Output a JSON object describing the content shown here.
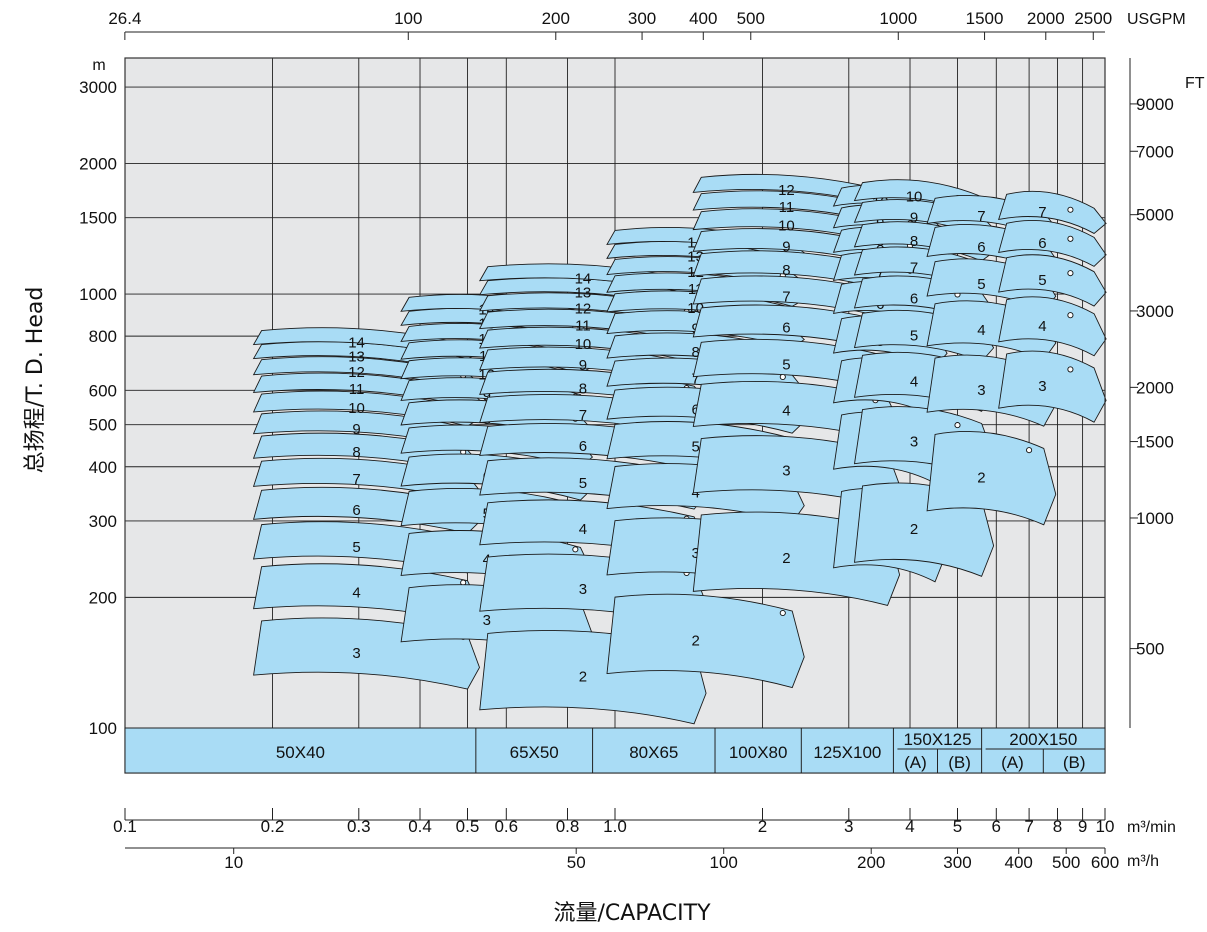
{
  "chart_data": {
    "type": "area",
    "title": "",
    "xlabel": "流量/CAPACITY",
    "ylabel": "总扬程/T. D. Head",
    "x_scale": "log",
    "y_scale": "log",
    "xlim_m3min": [
      0.1,
      10
    ],
    "ylim_m": [
      100,
      3500
    ],
    "y_unit_left": "m",
    "y_unit_right": "FT",
    "grid": true,
    "x_ticks_m3min": [
      {
        "v": 0.1,
        "label": "0.1"
      },
      {
        "v": 0.2,
        "label": "0.2"
      },
      {
        "v": 0.3,
        "label": "0.3"
      },
      {
        "v": 0.4,
        "label": "0.4"
      },
      {
        "v": 0.5,
        "label": "0.5"
      },
      {
        "v": 0.6,
        "label": "0.6"
      },
      {
        "v": 0.8,
        "label": "0.8"
      },
      {
        "v": 1.0,
        "label": "1.0"
      },
      {
        "v": 2,
        "label": "2"
      },
      {
        "v": 3,
        "label": "3"
      },
      {
        "v": 4,
        "label": "4"
      },
      {
        "v": 5,
        "label": "5"
      },
      {
        "v": 6,
        "label": "6"
      },
      {
        "v": 7,
        "label": "7"
      },
      {
        "v": 8,
        "label": "8"
      },
      {
        "v": 9,
        "label": "9"
      },
      {
        "v": 10,
        "label": "10"
      }
    ],
    "x_unit_m3min": "m³/min",
    "x_ticks_m3h": [
      {
        "v": 10,
        "label": "10"
      },
      {
        "v": 50,
        "label": "50"
      },
      {
        "v": 100,
        "label": "100"
      },
      {
        "v": 200,
        "label": "200"
      },
      {
        "v": 300,
        "label": "300"
      },
      {
        "v": 400,
        "label": "400"
      },
      {
        "v": 500,
        "label": "500"
      },
      {
        "v": 600,
        "label": "600"
      }
    ],
    "x_unit_m3h": "m³/h",
    "x_ticks_usgpm": [
      {
        "v": 26.4,
        "label": "26.4"
      },
      {
        "v": 100,
        "label": "100"
      },
      {
        "v": 200,
        "label": "200"
      },
      {
        "v": 300,
        "label": "300"
      },
      {
        "v": 400,
        "label": "400"
      },
      {
        "v": 500,
        "label": "500"
      },
      {
        "v": 1000,
        "label": "1000"
      },
      {
        "v": 1500,
        "label": "1500"
      },
      {
        "v": 2000,
        "label": "2000"
      },
      {
        "v": 2500,
        "label": "2500"
      }
    ],
    "x_unit_usgpm": "USGPM",
    "y_ticks_m": [
      {
        "v": 100,
        "label": "100"
      },
      {
        "v": 200,
        "label": "200"
      },
      {
        "v": 300,
        "label": "300"
      },
      {
        "v": 400,
        "label": "400"
      },
      {
        "v": 500,
        "label": "500"
      },
      {
        "v": 600,
        "label": "600"
      },
      {
        "v": 800,
        "label": "800"
      },
      {
        "v": 1000,
        "label": "1000"
      },
      {
        "v": 1500,
        "label": "1500"
      },
      {
        "v": 2000,
        "label": "2000"
      },
      {
        "v": 3000,
        "label": "3000"
      }
    ],
    "y_ticks_ft": [
      {
        "v": 500,
        "label": "500"
      },
      {
        "v": 1000,
        "label": "1000"
      },
      {
        "v": 1500,
        "label": "1500"
      },
      {
        "v": 2000,
        "label": "2000"
      },
      {
        "v": 3000,
        "label": "3000"
      },
      {
        "v": 5000,
        "label": "5000"
      },
      {
        "v": 7000,
        "label": "7000"
      },
      {
        "v": 9000,
        "label": "9000"
      }
    ],
    "model_bar": [
      {
        "label": "50X40",
        "from": 0.1,
        "to": 0.52
      },
      {
        "label": "65X50",
        "from": 0.52,
        "to": 0.9
      },
      {
        "label": "80X65",
        "from": 0.9,
        "to": 1.6
      },
      {
        "label": "100X80",
        "from": 1.6,
        "to": 2.4
      },
      {
        "label": "125X100",
        "from": 2.4,
        "to": 3.7
      },
      {
        "label": "150X125",
        "from": 3.7,
        "to": 5.6,
        "subs": [
          "(A)",
          "(B)"
        ]
      },
      {
        "label": "200X150",
        "from": 5.6,
        "to": 10,
        "subs": [
          "(A)",
          "(B)"
        ]
      }
    ],
    "series": [
      {
        "name": "50X40",
        "q_left": 0.19,
        "q_right": 0.5,
        "q_rated": 0.49,
        "stages": [
          3,
          4,
          5,
          6,
          7,
          8,
          9,
          10,
          11,
          12,
          13,
          14
        ],
        "head_per_stage_m": 57
      },
      {
        "name": "65X50",
        "q_left": 0.38,
        "q_right": 0.85,
        "q_rated": 0.83,
        "stages": [
          3,
          4,
          5,
          6,
          7,
          8,
          9,
          10,
          11,
          12,
          13,
          14
        ],
        "head_per_stage_m": 68
      },
      {
        "name": "80X65",
        "q_left": 0.55,
        "q_right": 1.45,
        "q_rated": 1.4,
        "stages": [
          2,
          3,
          4,
          5,
          6,
          7,
          8,
          9,
          10,
          11,
          12,
          13,
          14
        ],
        "head_per_stage_m": 80
      },
      {
        "name": "100X80",
        "q_left": 1.0,
        "q_right": 2.3,
        "q_rated": 2.2,
        "stages": [
          2,
          3,
          4,
          5,
          6,
          7,
          8,
          9,
          10,
          11,
          12,
          13,
          14
        ],
        "head_per_stage_m": 97
      },
      {
        "name": "125X100",
        "q_left": 1.5,
        "q_right": 3.6,
        "q_rated": 3.4,
        "stages": [
          2,
          3,
          4,
          5,
          6,
          7,
          8,
          9,
          10,
          11,
          12
        ],
        "head_per_stage_m": 150
      },
      {
        "name": "150X125(A)",
        "q_left": 2.9,
        "q_right": 4.5,
        "q_rated": 4.0,
        "stages": [
          2,
          3,
          4,
          5,
          6,
          7,
          8,
          9,
          10
        ],
        "head_per_stage_m": 170
      },
      {
        "name": "150X125(B)",
        "q_left": 3.2,
        "q_right": 5.6,
        "q_rated": 5.0,
        "stages": [
          2,
          3,
          4,
          5,
          6,
          7,
          8,
          9,
          10
        ],
        "head_per_stage_m": 175
      },
      {
        "name": "200X150(A)",
        "q_left": 4.5,
        "q_right": 7.5,
        "q_rated": 7.0,
        "stages": [
          2,
          3,
          4,
          5,
          6,
          7
        ],
        "head_per_stage_m": 230
      },
      {
        "name": "200X150(B)",
        "q_left": 6.3,
        "q_right": 9.5,
        "q_rated": 8.5,
        "stages": [
          3,
          4,
          5,
          6,
          7
        ],
        "head_per_stage_m": 235
      }
    ]
  }
}
